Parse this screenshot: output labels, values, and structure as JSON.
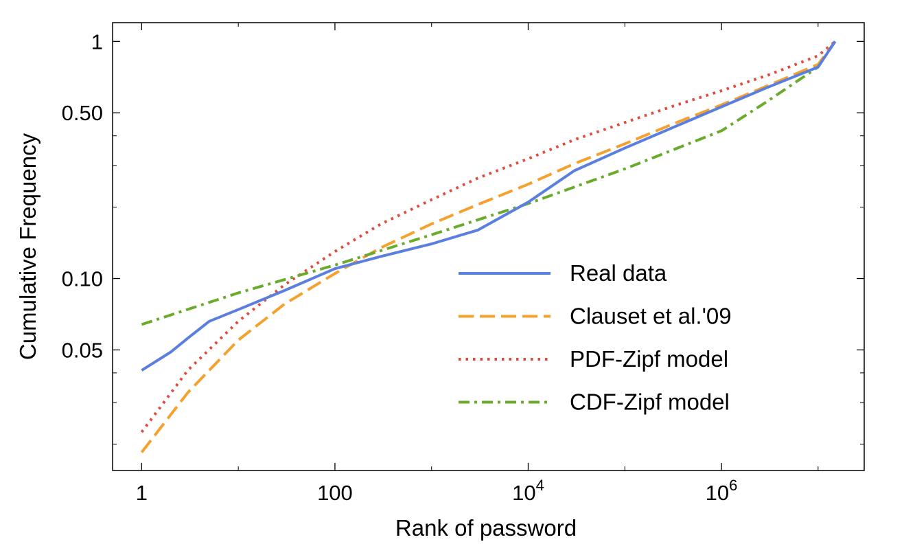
{
  "chart_data": {
    "type": "line",
    "xlabel": "Rank of password",
    "ylabel": "Cumulative Frequency",
    "x_scale": "log",
    "y_scale": "log",
    "xlim": [
      0.5,
      30000000
    ],
    "ylim": [
      0.0155,
      1.2
    ],
    "x_ticks": [
      {
        "value": 1,
        "label": "1",
        "base": "",
        "exp": ""
      },
      {
        "value": 100,
        "label": "100",
        "base": "",
        "exp": ""
      },
      {
        "value": 10000,
        "label": "",
        "base": "10",
        "exp": "4"
      },
      {
        "value": 1000000,
        "label": "",
        "base": "10",
        "exp": "6"
      }
    ],
    "x_minor_ticks": [
      10,
      1000,
      100000,
      10000000
    ],
    "y_ticks": [
      {
        "value": 0.05,
        "label": "0.05"
      },
      {
        "value": 0.1,
        "label": "0.10"
      },
      {
        "value": 0.5,
        "label": "0.50"
      },
      {
        "value": 1,
        "label": "1"
      }
    ],
    "y_minor_ticks": [
      0.02,
      0.03,
      0.04,
      0.2,
      0.3,
      0.4
    ],
    "legend_position": "lower-right",
    "grid": false,
    "series": [
      {
        "name": "Real data",
        "color": "#5b7fdf",
        "style": "solid",
        "points": [
          [
            1,
            0.041
          ],
          [
            2,
            0.049
          ],
          [
            3,
            0.056
          ],
          [
            5,
            0.066
          ],
          [
            10,
            0.074
          ],
          [
            30,
            0.089
          ],
          [
            100,
            0.11
          ],
          [
            300,
            0.124
          ],
          [
            1000,
            0.14
          ],
          [
            3000,
            0.16
          ],
          [
            10000,
            0.21
          ],
          [
            30000,
            0.285
          ],
          [
            100000,
            0.355
          ],
          [
            300000,
            0.43
          ],
          [
            1000000,
            0.53
          ],
          [
            3000000,
            0.64
          ],
          [
            10000000,
            0.78
          ],
          [
            15000000,
            1.0
          ]
        ]
      },
      {
        "name": "Clauset et al.'09",
        "color": "#f5a12e",
        "style": "dashed",
        "points": [
          [
            1,
            0.0185
          ],
          [
            3,
            0.033
          ],
          [
            10,
            0.055
          ],
          [
            30,
            0.078
          ],
          [
            100,
            0.105
          ],
          [
            300,
            0.135
          ],
          [
            1000,
            0.17
          ],
          [
            3000,
            0.205
          ],
          [
            10000,
            0.25
          ],
          [
            30000,
            0.305
          ],
          [
            100000,
            0.37
          ],
          [
            300000,
            0.445
          ],
          [
            1000000,
            0.54
          ],
          [
            3000000,
            0.65
          ],
          [
            10000000,
            0.8
          ],
          [
            15000000,
            1.0
          ]
        ]
      },
      {
        "name": "PDF-Zipf model",
        "color": "#e24a3b",
        "style": "dotted",
        "points": [
          [
            1,
            0.0225
          ],
          [
            3,
            0.041
          ],
          [
            10,
            0.066
          ],
          [
            30,
            0.094
          ],
          [
            100,
            0.13
          ],
          [
            300,
            0.17
          ],
          [
            1000,
            0.215
          ],
          [
            3000,
            0.265
          ],
          [
            10000,
            0.32
          ],
          [
            30000,
            0.385
          ],
          [
            100000,
            0.455
          ],
          [
            300000,
            0.53
          ],
          [
            1000000,
            0.62
          ],
          [
            3000000,
            0.72
          ],
          [
            10000000,
            0.87
          ],
          [
            15000000,
            1.0
          ]
        ]
      },
      {
        "name": "CDF-Zipf model",
        "color": "#6aab2b",
        "style": "dashdot",
        "points": [
          [
            1,
            0.064
          ],
          [
            10,
            0.087
          ],
          [
            100,
            0.114
          ],
          [
            1000,
            0.153
          ],
          [
            10000,
            0.207
          ],
          [
            100000,
            0.29
          ],
          [
            1000000,
            0.42
          ],
          [
            3000000,
            0.56
          ],
          [
            10000000,
            0.78
          ],
          [
            15000000,
            1.0
          ]
        ]
      }
    ]
  }
}
